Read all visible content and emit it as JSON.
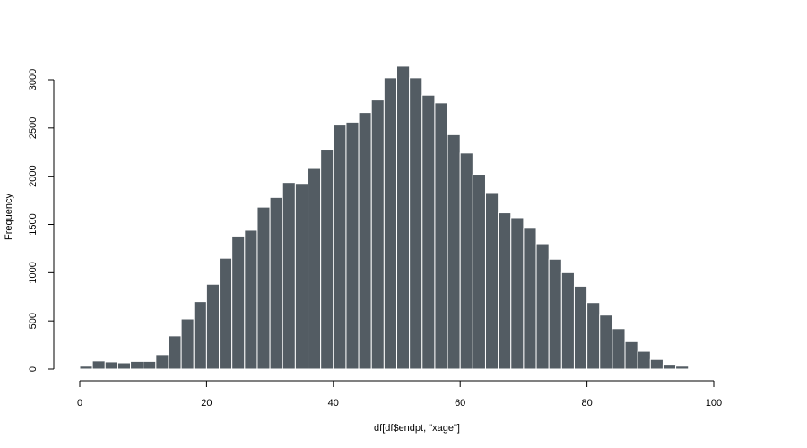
{
  "chart_data": {
    "type": "bar",
    "title": "",
    "xlabel": "df[df$endpt, \"xage\"]",
    "ylabel": "Frequency",
    "bin_width": 2,
    "x_start": 0,
    "xlim": [
      0,
      100
    ],
    "ylim": [
      0,
      3150
    ],
    "x_ticks": [
      0,
      20,
      40,
      60,
      80,
      100
    ],
    "y_ticks": [
      0,
      500,
      1000,
      1500,
      2000,
      2500,
      3000
    ],
    "values": [
      30,
      85,
      75,
      65,
      80,
      80,
      150,
      345,
      520,
      700,
      880,
      1150,
      1380,
      1440,
      1680,
      1780,
      1935,
      1925,
      2080,
      2280,
      2530,
      2560,
      2660,
      2790,
      3020,
      3140,
      3020,
      2840,
      2760,
      2430,
      2240,
      2020,
      1830,
      1620,
      1570,
      1460,
      1300,
      1140,
      1000,
      860,
      690,
      560,
      420,
      285,
      185,
      100,
      50,
      30
    ],
    "grid": false,
    "legend": "none",
    "bar_color": "#535c63",
    "bar_edge_color": "#ffffff"
  }
}
